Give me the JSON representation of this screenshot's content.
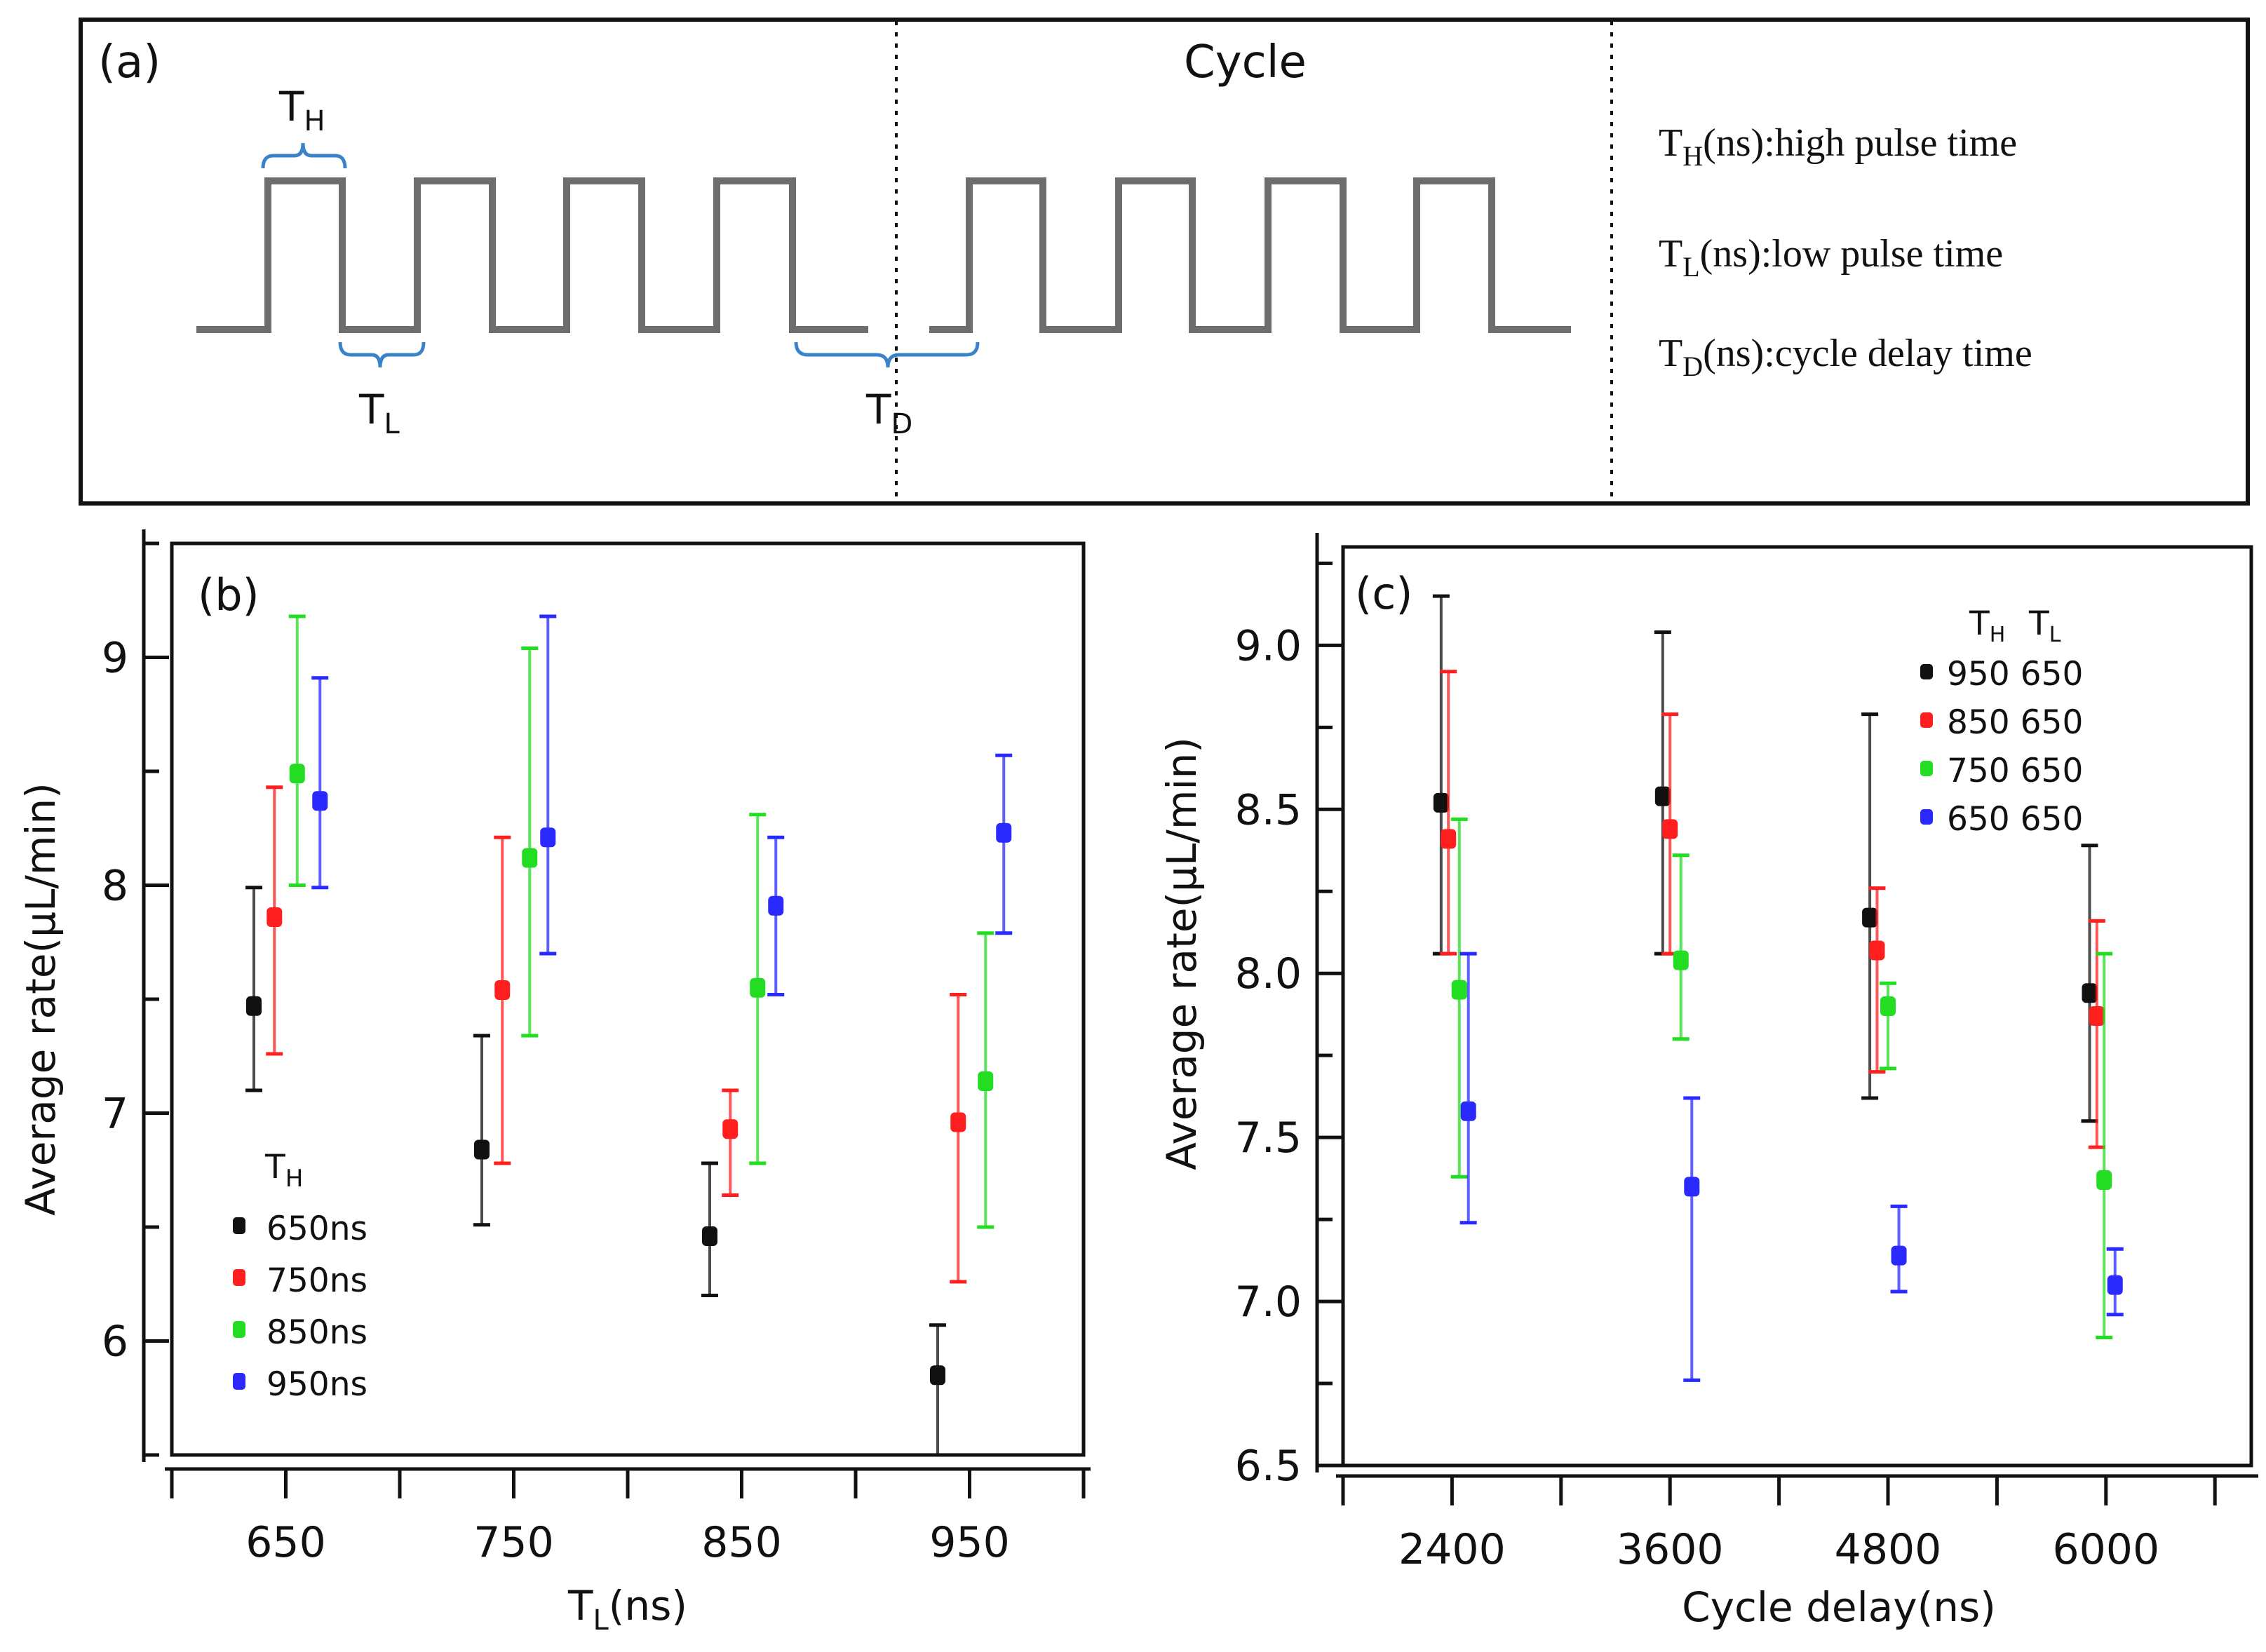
{
  "panel_a": {
    "label": "(a)",
    "cycle": "Cycle",
    "th": {
      "t": "T",
      "s": "H"
    },
    "tl": {
      "t": "T",
      "s": "L"
    },
    "td": {
      "t": "T",
      "s": "D"
    },
    "defs": [
      {
        "t": "T",
        "s": "H",
        "unit": "(ns)",
        "desc": ":high pulse time"
      },
      {
        "t": "T",
        "s": "L",
        "unit": "(ns)",
        "desc": ":low pulse time"
      },
      {
        "t": "T",
        "s": "D",
        "unit": "(ns)",
        "desc": ":cycle delay time"
      }
    ]
  },
  "colors": {
    "black": "#111111",
    "red": "#ff1f1f",
    "green": "#22dd22",
    "blue": "#2a2aff"
  },
  "chart_data": [
    {
      "type": "scatter",
      "panel": "(b)",
      "xlabel_main": "T",
      "xlabel_sub": "L",
      "xlabel_unit": "(ns)",
      "ylabel": "Average rate(μL/min)",
      "xlim": [
        600,
        1000
      ],
      "ylim": [
        5.5,
        9.5
      ],
      "xticks": [
        650,
        750,
        850,
        950
      ],
      "yticks": [
        6,
        7,
        8,
        9
      ],
      "legend_title_main": "T",
      "legend_title_sub": "H",
      "series": [
        {
          "name": "650ns",
          "color": "#111111",
          "x": [
            636,
            736,
            836,
            936
          ],
          "y": [
            7.47,
            6.84,
            6.46,
            5.85
          ],
          "err_low": [
            7.1,
            6.51,
            6.2,
            5.5
          ],
          "err_high": [
            7.99,
            7.34,
            6.78,
            6.07
          ]
        },
        {
          "name": "750ns",
          "color": "#ff1f1f",
          "x": [
            645,
            745,
            845,
            945
          ],
          "y": [
            7.86,
            7.54,
            6.93,
            6.96
          ],
          "err_low": [
            7.26,
            6.78,
            6.64,
            6.26
          ],
          "err_high": [
            8.43,
            8.21,
            7.1,
            7.52
          ]
        },
        {
          "name": "850ns",
          "color": "#22dd22",
          "x": [
            655,
            757,
            857,
            957
          ],
          "y": [
            8.49,
            8.12,
            7.55,
            7.14
          ],
          "err_low": [
            8.0,
            7.34,
            6.78,
            6.5
          ],
          "err_high": [
            9.18,
            9.04,
            8.31,
            7.79
          ]
        },
        {
          "name": "950ns",
          "color": "#2a2aff",
          "x": [
            665,
            765,
            865,
            965
          ],
          "y": [
            8.37,
            8.21,
            7.91,
            8.23
          ],
          "err_low": [
            7.99,
            7.7,
            7.52,
            7.79
          ],
          "err_high": [
            8.91,
            9.18,
            8.21,
            8.57
          ]
        }
      ]
    },
    {
      "type": "scatter",
      "panel": "(c)",
      "xlabel": "Cycle delay(ns)",
      "ylabel": "Average rate(μL/min)",
      "xlim": [
        1800,
        6800
      ],
      "ylim": [
        6.5,
        9.3
      ],
      "xticks": [
        2400,
        3600,
        4800,
        6000
      ],
      "yticks": [
        6.5,
        7.0,
        7.5,
        8.0,
        8.5,
        9.0
      ],
      "legend_header": [
        {
          "t": "T",
          "s": "H"
        },
        {
          "t": "T",
          "s": "L"
        }
      ],
      "series": [
        {
          "name": "950 650",
          "color": "#111111",
          "x": [
            2340,
            3560,
            4700,
            5910
          ],
          "y": [
            8.52,
            8.54,
            8.17,
            7.94
          ],
          "err_low": [
            8.06,
            8.06,
            7.62,
            7.55
          ],
          "err_high": [
            9.15,
            9.04,
            8.79,
            8.39
          ]
        },
        {
          "name": "850 650",
          "color": "#ff1f1f",
          "x": [
            2380,
            3600,
            4740,
            5950
          ],
          "y": [
            8.41,
            8.44,
            8.07,
            7.87
          ],
          "err_low": [
            8.06,
            8.06,
            7.7,
            7.47
          ],
          "err_high": [
            8.92,
            8.79,
            8.26,
            8.16
          ]
        },
        {
          "name": "750 650",
          "color": "#22dd22",
          "x": [
            2440,
            3660,
            4800,
            5990
          ],
          "y": [
            7.95,
            8.04,
            7.9,
            7.37
          ],
          "err_low": [
            7.38,
            7.8,
            7.71,
            6.89
          ],
          "err_high": [
            8.47,
            8.36,
            7.97,
            8.06
          ]
        },
        {
          "name": "650 650",
          "color": "#2a2aff",
          "x": [
            2490,
            3720,
            4860,
            6050
          ],
          "y": [
            7.58,
            7.35,
            7.14,
            7.05
          ],
          "err_low": [
            7.24,
            6.76,
            7.03,
            6.96
          ],
          "err_high": [
            8.06,
            7.62,
            7.29,
            7.16
          ]
        }
      ]
    }
  ]
}
